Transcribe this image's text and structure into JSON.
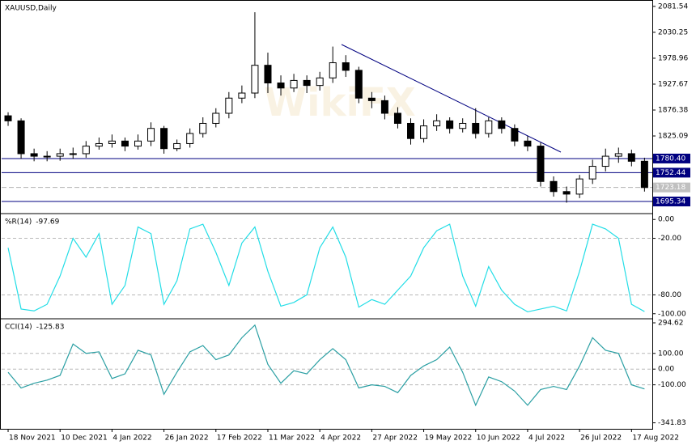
{
  "chart_data": [
    {
      "type": "candlestick",
      "title": "XAUUSD,Daily",
      "open": [
        1865,
        1855,
        1790,
        1785,
        1785,
        1790,
        1790,
        1805,
        1810,
        1815,
        1805,
        1815,
        1840,
        1800,
        1810,
        1830,
        1850,
        1870,
        1900,
        1910,
        1965,
        1930,
        1920,
        1935,
        1925,
        1940,
        1970,
        1955,
        1900,
        1895,
        1870,
        1850,
        1820,
        1845,
        1855,
        1840,
        1850,
        1830,
        1855,
        1840,
        1815,
        1805,
        1735,
        1715,
        1710,
        1740,
        1765,
        1785,
        1790,
        1775
      ],
      "high": [
        1872,
        1860,
        1800,
        1795,
        1800,
        1802,
        1815,
        1822,
        1828,
        1822,
        1828,
        1852,
        1845,
        1818,
        1840,
        1862,
        1880,
        1912,
        1925,
        2070,
        1990,
        1945,
        1948,
        1945,
        1952,
        2002,
        1985,
        1962,
        1912,
        1905,
        1882,
        1860,
        1858,
        1868,
        1862,
        1860,
        1880,
        1862,
        1862,
        1848,
        1825,
        1812,
        1745,
        1725,
        1748,
        1778,
        1800,
        1802,
        1798,
        1782
      ],
      "low": [
        1845,
        1780,
        1775,
        1775,
        1776,
        1780,
        1782,
        1798,
        1802,
        1795,
        1798,
        1805,
        1790,
        1795,
        1802,
        1822,
        1842,
        1860,
        1890,
        1900,
        1910,
        1905,
        1912,
        1910,
        1915,
        1930,
        1942,
        1890,
        1880,
        1858,
        1840,
        1808,
        1812,
        1835,
        1830,
        1832,
        1820,
        1822,
        1830,
        1805,
        1795,
        1725,
        1705,
        1693,
        1702,
        1730,
        1755,
        1772,
        1765,
        1715
      ],
      "close": [
        1855,
        1790,
        1785,
        1785,
        1790,
        1790,
        1805,
        1810,
        1815,
        1805,
        1815,
        1840,
        1800,
        1810,
        1830,
        1850,
        1870,
        1900,
        1910,
        1965,
        1930,
        1920,
        1935,
        1925,
        1940,
        1970,
        1955,
        1900,
        1895,
        1870,
        1850,
        1820,
        1845,
        1855,
        1840,
        1850,
        1830,
        1855,
        1840,
        1815,
        1805,
        1735,
        1715,
        1710,
        1740,
        1765,
        1785,
        1790,
        1775,
        1723
      ],
      "xlim": [
        -0.5,
        49.6
      ],
      "ylim": [
        1673,
        2091
      ],
      "yticks": [
        2081.54,
        2030.25,
        1978.96,
        1927.67,
        1876.38,
        1825.09
      ],
      "levels": [
        {
          "value": 1780.4,
          "label": "1780.40"
        },
        {
          "value": 1752.44,
          "label": "1752.44"
        },
        {
          "value": 1695.34,
          "label": "1695.34"
        }
      ],
      "level_color": "#000080",
      "current_price": {
        "value": 1723.18,
        "label": "1723.18"
      },
      "watermark": "WikiFX"
    },
    {
      "type": "line",
      "name": "%R(14)",
      "last": -97.69,
      "color": "#22dde6",
      "values": [
        -30,
        -95,
        -97,
        -90,
        -60,
        -20,
        -40,
        -15,
        -90,
        -70,
        -8,
        -15,
        -90,
        -65,
        -10,
        -5,
        -35,
        -70,
        -25,
        -8,
        -55,
        -92,
        -88,
        -80,
        -30,
        -8,
        -40,
        -93,
        -85,
        -90,
        -75,
        -60,
        -30,
        -12,
        -5,
        -60,
        -92,
        -50,
        -75,
        -90,
        -98,
        -95,
        -92,
        -97,
        -55,
        -5,
        -10,
        -20,
        -90,
        -97.69
      ],
      "xlim": [
        -0.5,
        49.6
      ],
      "ylim": [
        -104.5,
        4.5
      ],
      "yticks": [
        {
          "value": 0,
          "label": "0.00"
        },
        {
          "value": -20,
          "label": "-20.00"
        },
        {
          "value": -80,
          "label": "-80.00"
        },
        {
          "value": -100,
          "label": "-100.00"
        }
      ],
      "grid_levels": [
        -20,
        -80
      ]
    },
    {
      "type": "line",
      "name": "CCI(14)",
      "last": -125.83,
      "color": "#2a9fa3",
      "values": [
        -20,
        -120,
        -90,
        -70,
        -40,
        160,
        100,
        110,
        -60,
        -30,
        120,
        90,
        -160,
        -20,
        110,
        150,
        60,
        90,
        200,
        280,
        30,
        -90,
        -10,
        -30,
        60,
        130,
        60,
        -120,
        -100,
        -110,
        -150,
        -40,
        20,
        60,
        140,
        -20,
        -230,
        -50,
        -80,
        -140,
        -230,
        -130,
        -110,
        -130,
        20,
        200,
        120,
        100,
        -100,
        -125.83
      ],
      "xlim": [
        -0.5,
        49.6
      ],
      "ylim": [
        -380,
        310
      ],
      "yticks": [
        294.62,
        {
          "value": 100,
          "label": "100.00"
        },
        {
          "value": 0,
          "label": "0.00"
        },
        {
          "value": -100,
          "label": "-100.00"
        },
        -341.83
      ],
      "grid_levels": [
        100,
        0,
        -100
      ],
      "xticks": [
        {
          "value": 0,
          "label": "18 Nov 2021"
        },
        {
          "value": 4,
          "label": "10 Dec 2021"
        },
        {
          "value": 8,
          "label": "4 Jan 2022"
        },
        {
          "value": 12,
          "label": "26 Jan 2022"
        },
        {
          "value": 16,
          "label": "17 Feb 2022"
        },
        {
          "value": 20,
          "label": "11 Mar 2022"
        },
        {
          "value": 24,
          "label": "4 Apr 2022"
        },
        {
          "value": 28,
          "label": "27 Apr 2022"
        },
        {
          "value": 32,
          "label": "19 May 2022"
        },
        {
          "value": 36,
          "label": "10 Jun 2022"
        },
        {
          "value": 40,
          "label": "4 Jul 2022"
        },
        {
          "value": 44,
          "label": "26 Jul 2022"
        },
        {
          "value": 48,
          "label": "17 Aug 2022"
        }
      ]
    }
  ]
}
